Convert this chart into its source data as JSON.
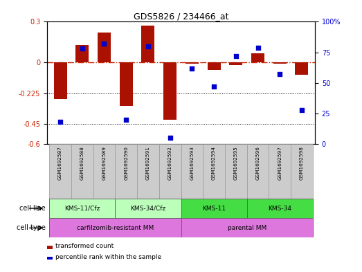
{
  "title": "GDS5826 / 234466_at",
  "samples": [
    "GSM1692587",
    "GSM1692588",
    "GSM1692589",
    "GSM1692590",
    "GSM1692591",
    "GSM1692592",
    "GSM1692593",
    "GSM1692594",
    "GSM1692595",
    "GSM1692596",
    "GSM1692597",
    "GSM1692598"
  ],
  "transformed_count": [
    -0.27,
    0.13,
    0.22,
    -0.32,
    0.27,
    -0.42,
    -0.01,
    -0.055,
    -0.02,
    0.07,
    -0.01,
    -0.09
  ],
  "percentile_rank": [
    18,
    78,
    82,
    20,
    80,
    5,
    62,
    47,
    72,
    79,
    57,
    28
  ],
  "ylim_left": [
    -0.6,
    0.3
  ],
  "ylim_right": [
    0,
    100
  ],
  "yticks_left": [
    0.3,
    0,
    -0.225,
    -0.45,
    -0.6
  ],
  "yticks_right": [
    100,
    75,
    50,
    25,
    0
  ],
  "hline_zero_color": "#cc2200",
  "hline_dotted_vals": [
    -0.225,
    -0.45
  ],
  "bar_color": "#aa1100",
  "dot_color": "#0000cc",
  "cell_line_groups": [
    {
      "label": "KMS-11/Cfz",
      "start": 0,
      "end": 2,
      "color": "#bbffbb"
    },
    {
      "label": "KMS-34/Cfz",
      "start": 3,
      "end": 5,
      "color": "#bbffbb"
    },
    {
      "label": "KMS-11",
      "start": 6,
      "end": 8,
      "color": "#44dd44"
    },
    {
      "label": "KMS-34",
      "start": 9,
      "end": 11,
      "color": "#44dd44"
    }
  ],
  "cell_type_groups": [
    {
      "label": "carfilzomib-resistant MM",
      "start": 0,
      "end": 5,
      "color": "#dd77dd"
    },
    {
      "label": "parental MM",
      "start": 6,
      "end": 11,
      "color": "#dd77dd"
    }
  ],
  "cell_line_label": "cell line",
  "cell_type_label": "cell type",
  "legend_items": [
    {
      "label": "transformed count",
      "color": "#aa1100"
    },
    {
      "label": "percentile rank within the sample",
      "color": "#0000cc"
    }
  ]
}
